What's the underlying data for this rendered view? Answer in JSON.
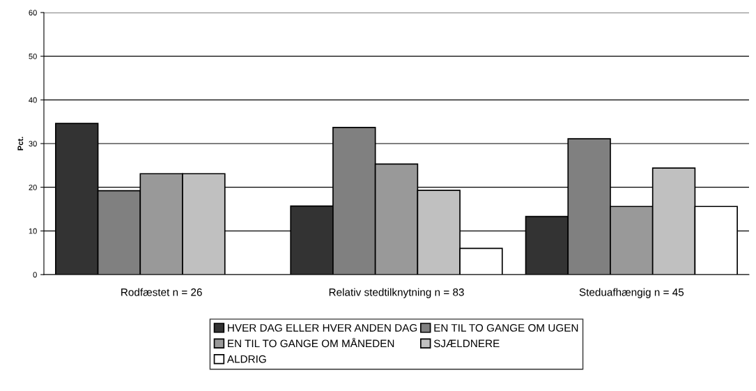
{
  "chart_data": {
    "type": "bar",
    "ylabel": "Pct.",
    "categories": [
      "Rodfæstet n = 26",
      "Relativ stedtilknytning n = 83",
      "Steduafhængig n = 45"
    ],
    "series": [
      {
        "name": "HVER DAG ELLER HVER ANDEN DAG",
        "color": "#333333",
        "values": [
          34.6,
          15.7,
          13.3
        ]
      },
      {
        "name": "EN TIL TO GANGE OM UGEN",
        "color": "#808080",
        "values": [
          19.2,
          33.7,
          31.1
        ]
      },
      {
        "name": "EN TIL TO GANGE OM MÅNEDEN",
        "color": "#999999",
        "values": [
          23.1,
          25.3,
          15.6
        ]
      },
      {
        "name": "SJÆLDNERE",
        "color": "#c0c0c0",
        "values": [
          23.1,
          19.3,
          24.4
        ]
      },
      {
        "name": "ALDRIG",
        "color": "#ffffff",
        "values": [
          null,
          6.0,
          15.6
        ]
      }
    ],
    "ylim": [
      0,
      60
    ],
    "yticks": [
      0,
      10,
      20,
      30,
      40,
      50,
      60
    ],
    "grid": "y",
    "legend": "bottom"
  }
}
